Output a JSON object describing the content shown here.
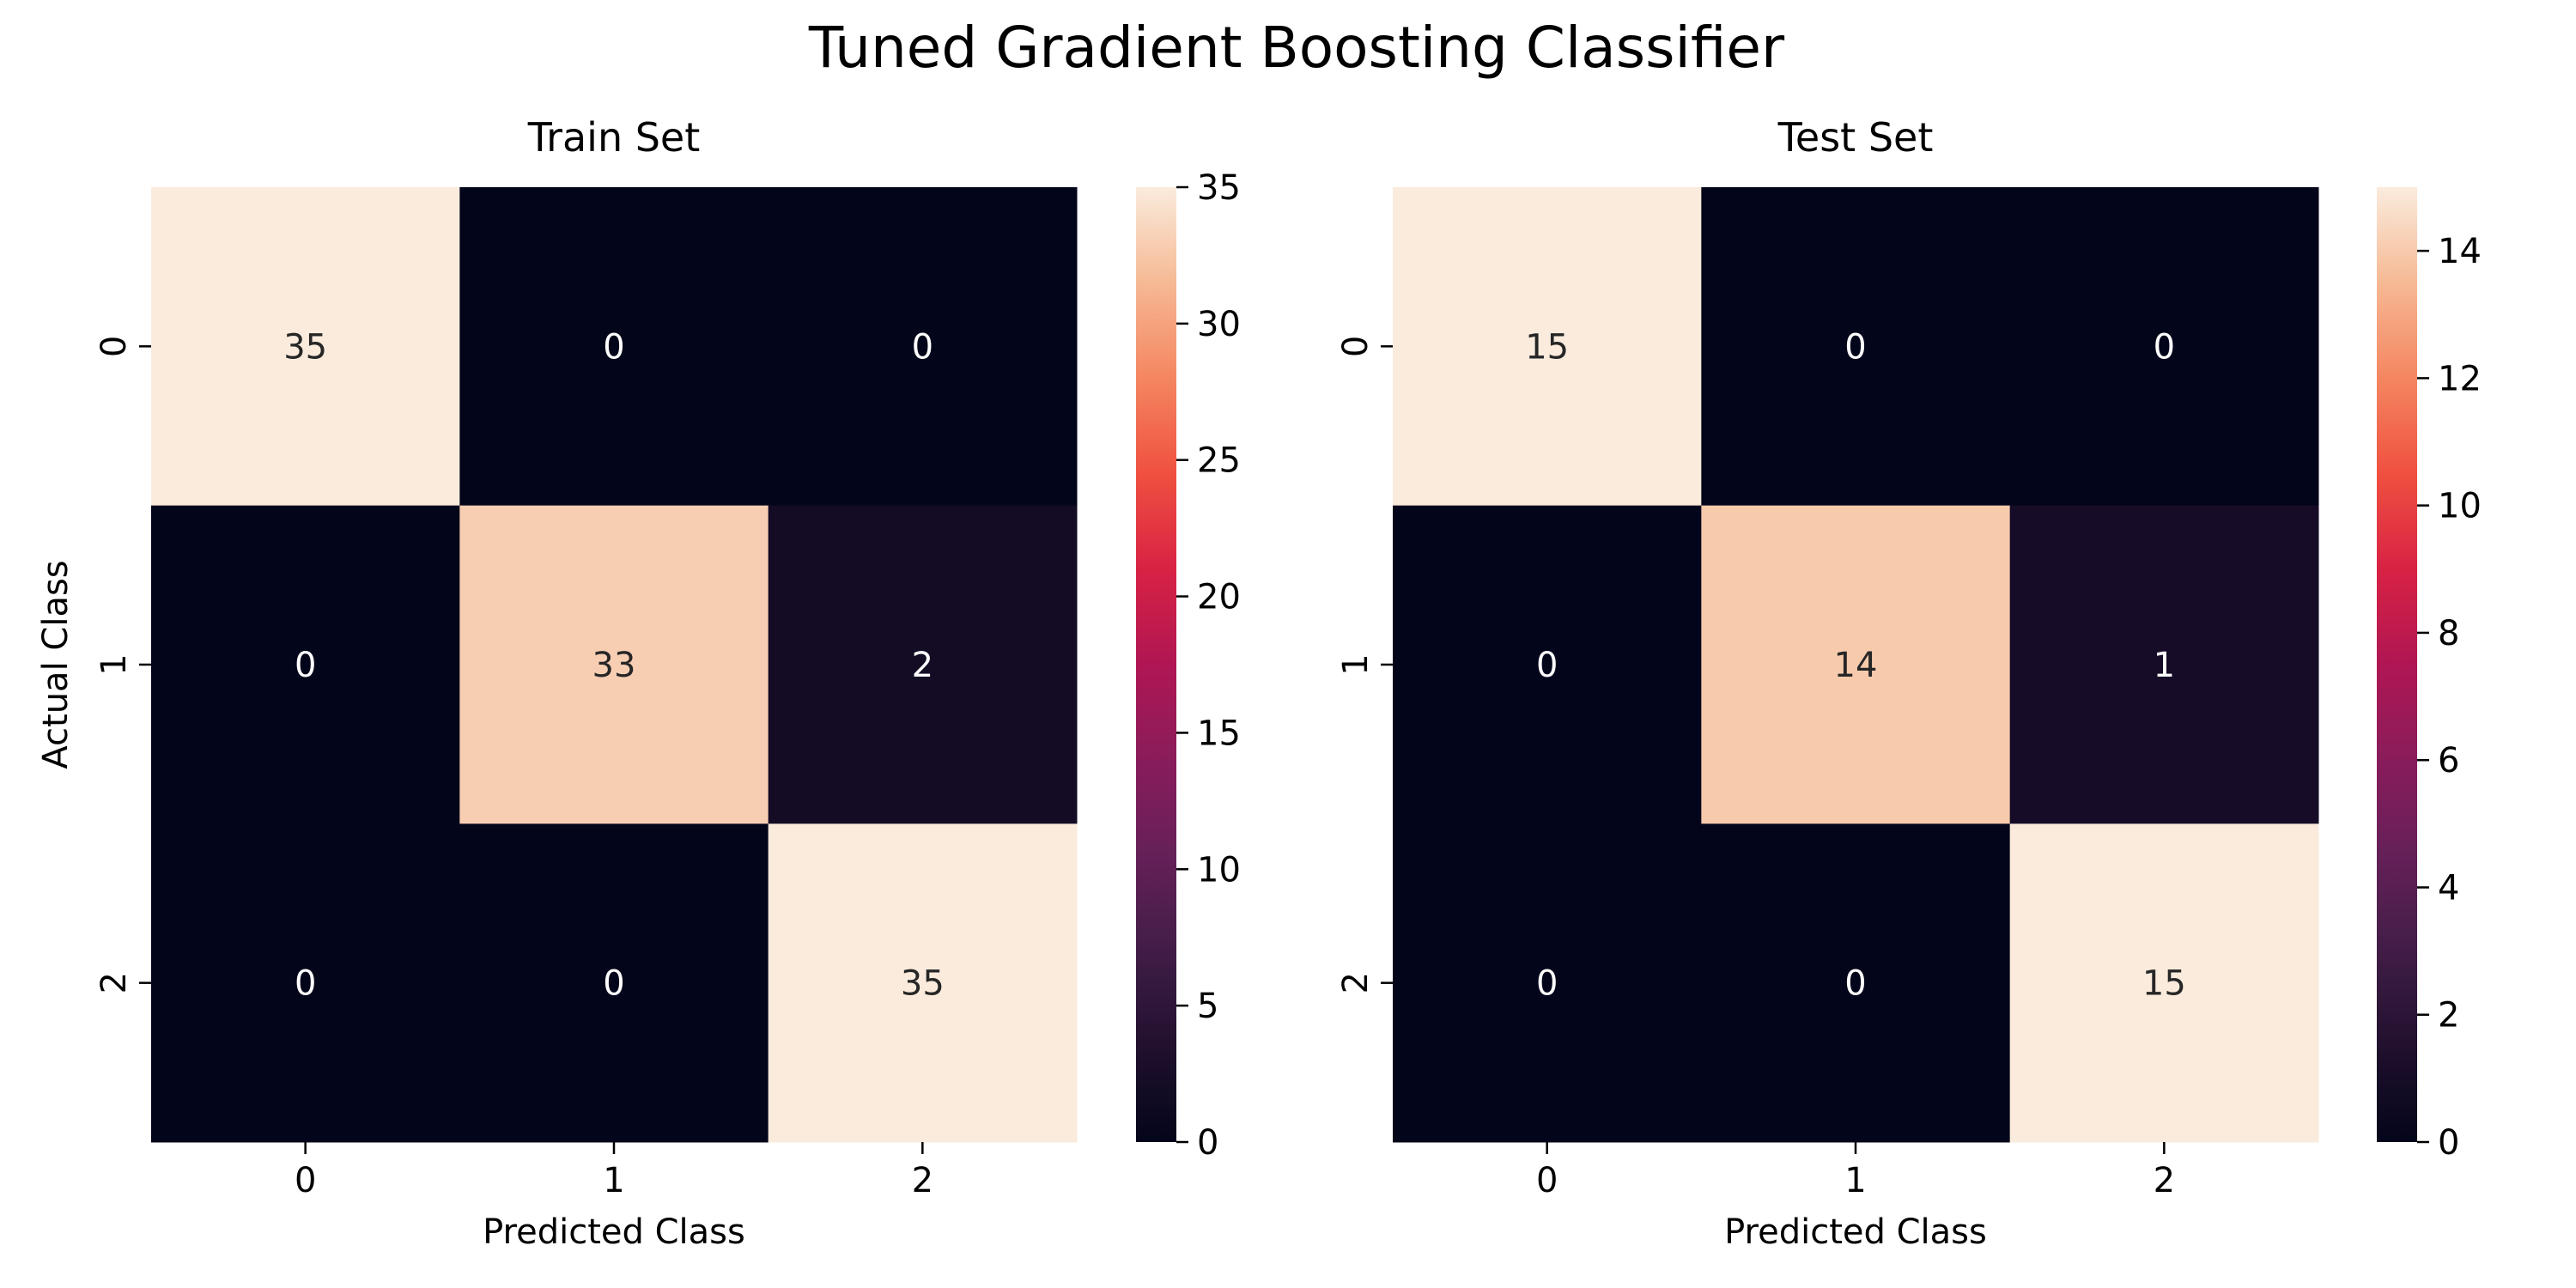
{
  "chart_data": {
    "title": "Tuned Gradient Boosting Classifier",
    "type": "heatmap",
    "colormap": "rocket",
    "panels": [
      {
        "title": "Train Set",
        "xlabel": "Predicted Class",
        "ylabel": "Actual Class",
        "x_categories": [
          "0",
          "1",
          "2"
        ],
        "y_categories": [
          "0",
          "1",
          "2"
        ],
        "values": [
          [
            35,
            0,
            0
          ],
          [
            0,
            33,
            2
          ],
          [
            0,
            0,
            35
          ]
        ],
        "colorbar": {
          "min": 0,
          "max": 35,
          "ticks": [
            0,
            5,
            10,
            15,
            20,
            25,
            30,
            35
          ]
        }
      },
      {
        "title": "Test Set",
        "xlabel": "Predicted Class",
        "ylabel": "",
        "x_categories": [
          "0",
          "1",
          "2"
        ],
        "y_categories": [
          "0",
          "1",
          "2"
        ],
        "values": [
          [
            15,
            0,
            0
          ],
          [
            0,
            14,
            1
          ],
          [
            0,
            0,
            15
          ]
        ],
        "colorbar": {
          "min": 0,
          "max": 15,
          "ticks": [
            0,
            2,
            4,
            6,
            8,
            10,
            12,
            14
          ]
        }
      }
    ]
  }
}
